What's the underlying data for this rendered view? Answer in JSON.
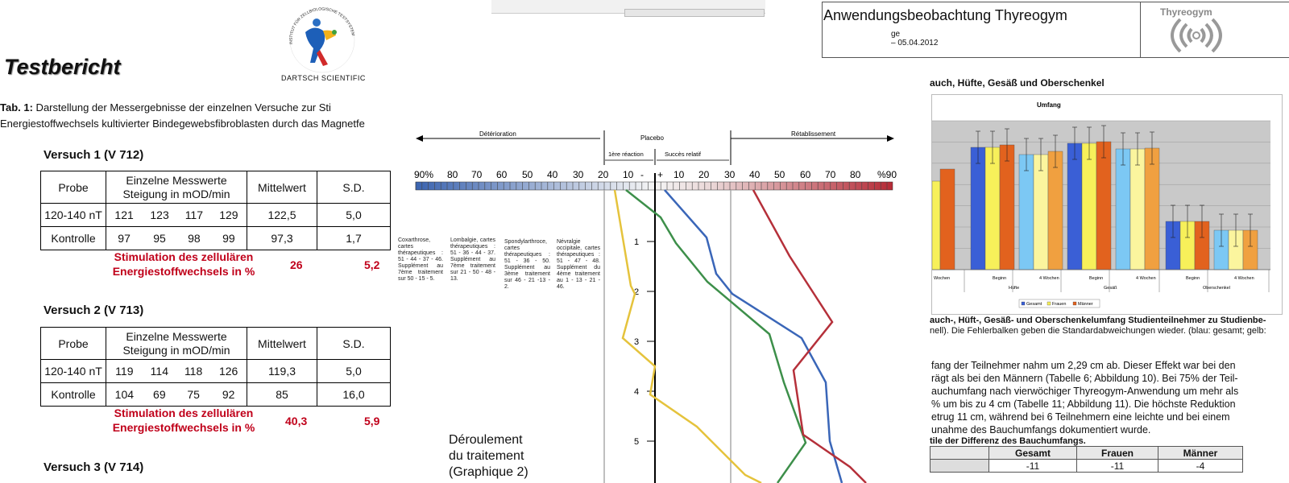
{
  "left": {
    "title": "Testbericht",
    "logo_text": "DARTSCH SCIENTIFIC",
    "logo_ring_text": "INSTITUT FÜR ZELLBIOLOGISCHE TESTSYSTEME",
    "caption_bold": "Tab. 1:",
    "caption_line1": " Darstellung der Messergebnisse der einzelnen Versuche zur Sti",
    "caption_line2": "Energiestoffwechsels kultivierter Bindegewebsfibroblasten durch das Magnetfe",
    "headers": {
      "probe": "Probe",
      "werte_line1": "Einzelne Messwerte",
      "werte_line2": "Steigung in mOD/min",
      "mittel": "Mittelwert",
      "sd": "S.D."
    },
    "stim_line1": "Stimulation des zellulären",
    "stim_line2": "Energiestoffwechsels in %",
    "versuche": [
      {
        "title": "Versuch 1 (V 712)",
        "rows": [
          {
            "probe": "120-140 nT",
            "v": [
              "121",
              "123",
              "117",
              "129"
            ],
            "mittel": "122,5",
            "sd": "5,0"
          },
          {
            "probe": "Kontrolle",
            "v": [
              "97",
              "95",
              "98",
              "99"
            ],
            "mittel": "97,3",
            "sd": "1,7"
          }
        ],
        "stim_value": "26",
        "stim_sd": "5,2"
      },
      {
        "title": "Versuch 2 (V 713)",
        "rows": [
          {
            "probe": "120-140 nT",
            "v": [
              "119",
              "114",
              "118",
              "126"
            ],
            "mittel": "119,3",
            "sd": "5,0"
          },
          {
            "probe": "Kontrolle",
            "v": [
              "104",
              "69",
              "75",
              "92"
            ],
            "mittel": "85",
            "sd": "16,0"
          }
        ],
        "stim_value": "40,3",
        "stim_sd": "5,9"
      },
      {
        "title": "Versuch 3 (V 714)"
      }
    ]
  },
  "middle": {
    "arrow_left": "Détérioration",
    "arrow_center": "Placebo",
    "arrow_right": "Rétablissement",
    "sub_reaction": "1ère réaction",
    "sub_succes": "Succès relatif",
    "scale_labels": [
      "90%",
      "80",
      "70",
      "60",
      "50",
      "40",
      "30",
      "20",
      "10",
      "-",
      "+",
      "10",
      "20",
      "30",
      "40",
      "50",
      "60",
      "70",
      "80",
      "%90"
    ],
    "rows": [
      "1",
      "2",
      "3",
      "4",
      "5"
    ],
    "legends": [
      "Coxarthrose, cartes thérapeutiques : 51 - 44 - 37 - 46. Supplément au 7ème traitement sur 50 - 15 - 5.",
      "Lombalgie, cartes thérapeutiques : 51 - 36 - 44 - 37. Supplément au 7ème traitement sur 21 - 50 - 48 - 13.",
      "Spondylarthroce, cartes thérapeutiques : 51 - 36 - 50. Supplément au 3ème traitement sur 46 - 21 -13 - 2.",
      "Névralgie occipitale, cartes thérapeutiques : 51 - 47 - 48. Supplément du 4ème traitement au 1 - 13 - 21 - 46."
    ],
    "chart_caption_1": "Déroulement",
    "chart_caption_2": "du traitement",
    "chart_caption_3": "(Graphique 2)",
    "line_colors": {
      "yellow": "#e5c33c",
      "green": "#3d8f4a",
      "blue": "#3a66b8",
      "red": "#b5303a"
    }
  },
  "right": {
    "header_title": "Anwendungsbeobachtung Thyreogym",
    "header_sub1": "ge",
    "header_sub2": "– 05.04.2012",
    "logo_name": "Thyreogym",
    "section_title": "auch, Hüfte, Gesäß und Oberschenkel",
    "chart_title": "Umfang",
    "x_ticks": [
      "Wochen",
      "Beginn",
      "4 Wochen",
      "Beginn",
      "4 Wochen",
      "Beginn",
      "4 Wochen"
    ],
    "x_groups": [
      "Hüfte",
      "Gesäß",
      "Oberschenkel"
    ],
    "legend": [
      "Gesamt",
      "Frauen",
      "Männer"
    ],
    "series_colors": {
      "Gesamt": "#3a5fd6",
      "Frauen": "#f7f05a",
      "Männer": "#e2621e",
      "Gesamt_light": "#7cc8f4",
      "Frauen_light": "#fbf59e",
      "Männer_light": "#f0a040"
    },
    "caption_bold": "auch-, Hüft-, Gesäß- und Oberschenkelumfang Studienteilnehmer zu Studienbe-",
    "caption_reg": "nell). Die Fehlerbalken geben die Standardabweichungen wieder. (blau: gesamt; gelb:",
    "para_lines": [
      "fang der Teilnehmer nahm um 2,29 cm ab. Dieser Effekt war bei den",
      "rägt als bei den Männern (Tabelle 6; Abbildung 10). Bei 75% der Teil-",
      "auchumfang nach vierwöchiger Thyreogym-Anwendung um mehr als",
      "% um bis zu 4 cm (Tabelle 11; Abbildung 11). Die höchste Reduktion",
      "etrug 11 cm, während bei 6 Teilnehmern eine leichte und bei einem",
      "unahme des Bauchumfangs dokumentiert wurde."
    ],
    "table_caption": "tile der Differenz des Bauchumfangs.",
    "table_headers": [
      "",
      "Gesamt",
      "Frauen",
      "Männer"
    ],
    "table_row": [
      "",
      "-11",
      "-11",
      "-4"
    ]
  }
}
